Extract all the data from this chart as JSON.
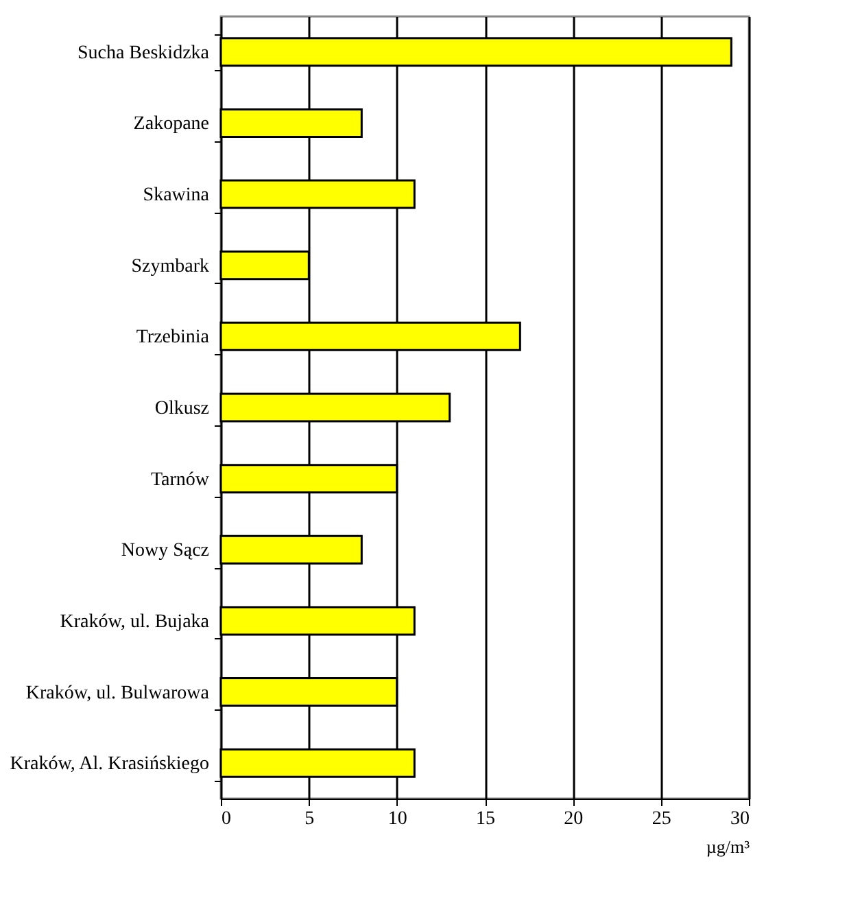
{
  "chart_data": {
    "type": "bar",
    "orientation": "horizontal",
    "xlabel": "µg/m³",
    "categories": [
      "Sucha Beskidzka",
      "Zakopane",
      "Skawina",
      "Szymbark",
      "Trzebinia",
      "Olkusz",
      "Tarnów",
      "Nowy Sącz",
      "Kraków, ul. Bujaka",
      "Kraków, ul. Bulwarowa",
      "Kraków, Al. Krasińskiego"
    ],
    "values": [
      29,
      8,
      11,
      5,
      17,
      13,
      10,
      8,
      11,
      10,
      11
    ],
    "color": "#ffff00",
    "xlim": [
      0,
      30
    ],
    "xticks": [
      0,
      5,
      10,
      15,
      20,
      25,
      30
    ],
    "grid": "x"
  }
}
